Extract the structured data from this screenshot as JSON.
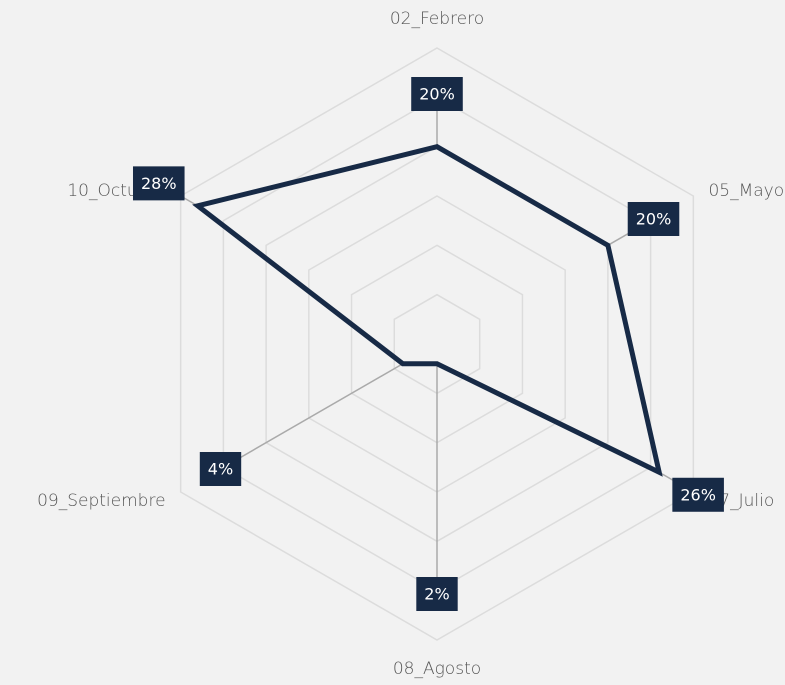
{
  "chart_data": {
    "type": "radar",
    "categories": [
      "02_Febrero",
      "05_Mayo",
      "07_Julio",
      "08_Agosto",
      "09_Septiembre",
      "10_Octubre"
    ],
    "values": [
      20,
      20,
      26,
      2,
      4,
      28
    ],
    "value_labels": [
      "20%",
      "20%",
      "26%",
      "2%",
      "4%",
      "28%"
    ],
    "color": "#172a46",
    "rlim": [
      0,
      30
    ],
    "rticks": [
      5,
      10,
      15,
      20,
      25,
      30
    ],
    "grid": true
  }
}
